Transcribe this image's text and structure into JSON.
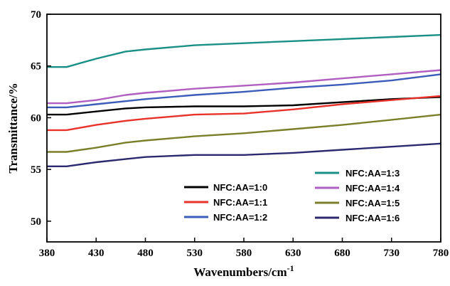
{
  "chart_data": {
    "type": "line",
    "xlabel": "Wavenumbers/cm",
    "xlabel_sup": "-1",
    "ylabel": "Transmittance/%",
    "xlim": [
      380,
      780
    ],
    "ylim": [
      48,
      70
    ],
    "x_ticks": [
      380,
      430,
      480,
      530,
      580,
      630,
      680,
      730,
      780
    ],
    "y_ticks": [
      50,
      55,
      60,
      65,
      70
    ],
    "grid": false,
    "legend_placement": "lower-right, two columns",
    "x": [
      380,
      400,
      430,
      460,
      480,
      530,
      580,
      630,
      680,
      730,
      780
    ],
    "series": [
      {
        "name": "NFC:AA=1:0",
        "color": "#000000",
        "values": [
          60.3,
          60.3,
          60.6,
          60.9,
          61.0,
          61.1,
          61.1,
          61.2,
          61.5,
          61.8,
          62.0
        ]
      },
      {
        "name": "NFC:AA=1:1",
        "color": "#e8322a",
        "values": [
          58.8,
          58.8,
          59.3,
          59.7,
          59.9,
          60.3,
          60.4,
          60.8,
          61.3,
          61.7,
          62.1
        ]
      },
      {
        "name": "NFC:AA=1:2",
        "color": "#3b5cb8",
        "values": [
          61.0,
          61.0,
          61.3,
          61.6,
          61.8,
          62.2,
          62.5,
          62.9,
          63.2,
          63.6,
          64.2
        ]
      },
      {
        "name": "NFC:AA=1:3",
        "color": "#1a8f86",
        "values": [
          64.9,
          64.9,
          65.7,
          66.4,
          66.6,
          67.0,
          67.2,
          67.4,
          67.6,
          67.8,
          68.0
        ]
      },
      {
        "name": "NFC:AA=1:4",
        "color": "#b05ec0",
        "values": [
          61.4,
          61.4,
          61.7,
          62.2,
          62.4,
          62.8,
          63.1,
          63.4,
          63.8,
          64.2,
          64.6
        ]
      },
      {
        "name": "NFC:AA=1:5",
        "color": "#7b7f2a",
        "values": [
          56.7,
          56.7,
          57.1,
          57.6,
          57.8,
          58.2,
          58.5,
          58.9,
          59.3,
          59.8,
          60.3
        ]
      },
      {
        "name": "NFC:AA=1:6",
        "color": "#2b2a6f",
        "values": [
          55.3,
          55.3,
          55.7,
          56.0,
          56.2,
          56.4,
          56.4,
          56.6,
          56.9,
          57.2,
          57.5
        ]
      }
    ]
  }
}
